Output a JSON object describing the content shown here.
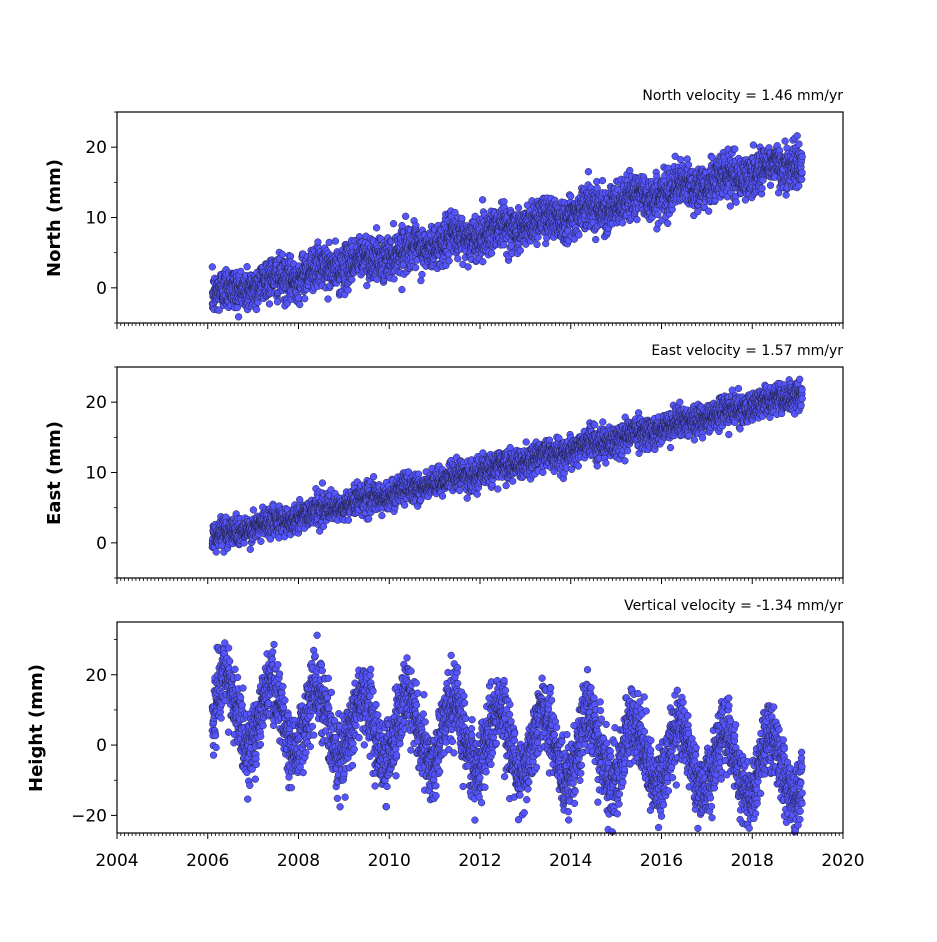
{
  "chart_data": [
    {
      "type": "scatter",
      "annotation": "North velocity = 1.46 mm/yr",
      "ylabel": "North (mm)",
      "xlim": [
        2004,
        2020
      ],
      "ylim": [
        -5,
        25
      ],
      "yticks": [
        0,
        10,
        20
      ],
      "marker_color": "#5555ff",
      "edge_color": "#222244",
      "series": [
        {
          "x_start": 2006.1,
          "x_end": 2019.1,
          "velocity_mm_per_yr": 1.46,
          "y_at_start": -1.0,
          "scatter_mm": 1.5,
          "seasonal_amp_mm": 0.6
        }
      ]
    },
    {
      "type": "scatter",
      "annotation": "East velocity = 1.57 mm/yr",
      "ylabel": "East (mm)",
      "xlim": [
        2004,
        2020
      ],
      "ylim": [
        -5,
        25
      ],
      "yticks": [
        0,
        10,
        20
      ],
      "marker_color": "#5555ff",
      "edge_color": "#222244",
      "series": [
        {
          "x_start": 2006.1,
          "x_end": 2019.1,
          "velocity_mm_per_yr": 1.57,
          "y_at_start": 0.8,
          "scatter_mm": 1.0,
          "seasonal_amp_mm": 0.4
        }
      ]
    },
    {
      "type": "scatter",
      "annotation": "Vertical velocity = -1.34 mm/yr",
      "ylabel": "Height (mm)",
      "xlim": [
        2004,
        2020
      ],
      "ylim": [
        -25,
        35
      ],
      "yticks": [
        -20,
        0,
        20
      ],
      "xticks": [
        2004,
        2006,
        2008,
        2010,
        2012,
        2014,
        2016,
        2018,
        2020
      ],
      "marker_color": "#5555ff",
      "edge_color": "#222244",
      "series": [
        {
          "x_start": 2006.1,
          "x_end": 2019.1,
          "velocity_mm_per_yr": -1.34,
          "y_at_start": 10.0,
          "scatter_mm": 5.0,
          "seasonal_amp_mm": 9.0
        }
      ]
    }
  ],
  "page": {
    "annotations": {
      "north": "North velocity = 1.46 mm/yr",
      "east": "East velocity = 1.57 mm/yr",
      "vertical": "Vertical velocity = -1.34 mm/yr"
    },
    "ylabels": {
      "north": "North (mm)",
      "east": "East (mm)",
      "height": "Height (mm)"
    },
    "x_tick_labels": [
      "2004",
      "2006",
      "2008",
      "2010",
      "2012",
      "2014",
      "2016",
      "2018",
      "2020"
    ],
    "north_y_tick_labels": [
      "0",
      "10",
      "20"
    ],
    "east_y_tick_labels": [
      "0",
      "10",
      "20"
    ],
    "height_y_tick_labels": [
      "−20",
      "0",
      "20"
    ]
  }
}
